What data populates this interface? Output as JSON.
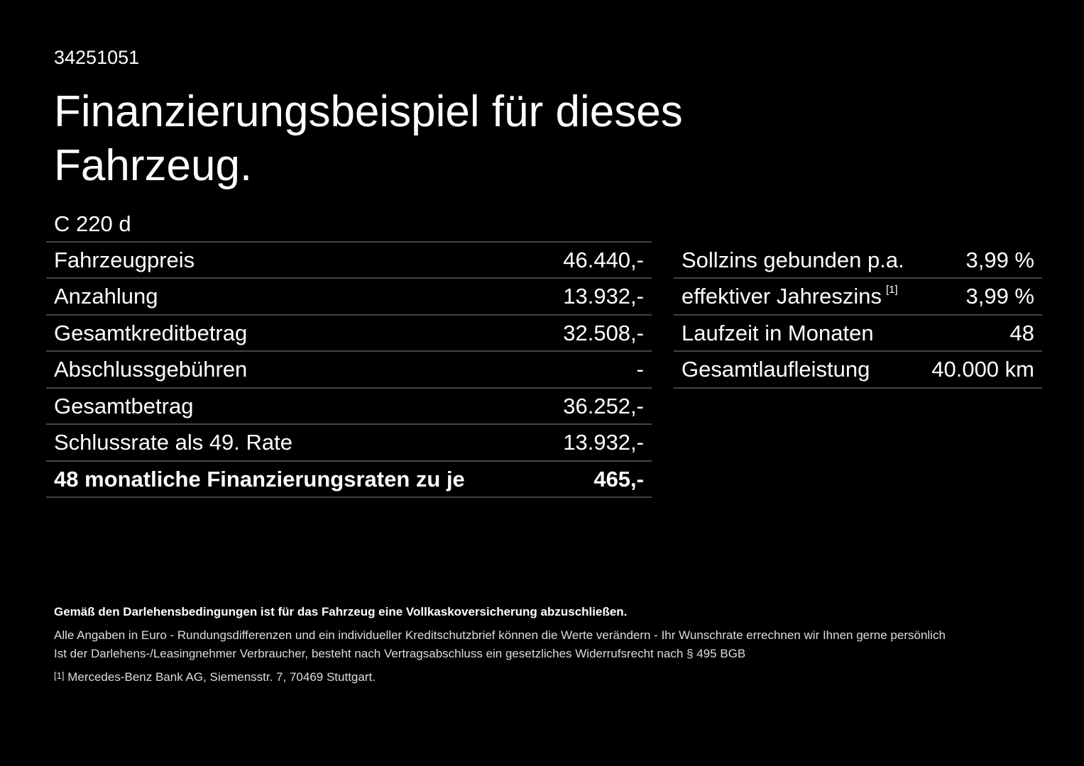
{
  "header": {
    "id": "34251051",
    "title_line1": "Finanzierungsbeispiel für dieses",
    "title_line2": "Fahrzeug.",
    "model": "C 220 d"
  },
  "left_table": {
    "rows": [
      [
        "Fahrzeugpreis",
        "46.440,-"
      ],
      [
        "Anzahlung",
        "13.932,-"
      ],
      [
        "Gesamtkreditbetrag",
        "32.508,-"
      ],
      [
        "Abschlussgebühren",
        "-"
      ],
      [
        "Gesamtbetrag",
        "36.252,-"
      ],
      [
        "Schlussrate als 49. Rate",
        "13.932,-"
      ],
      [
        "48 monatliche Finanzierungsraten zu je",
        "465,-"
      ]
    ]
  },
  "right_table": {
    "rows": [
      [
        "Sollzins gebunden p.a.",
        "3,99 %"
      ],
      [
        "effektiver Jahreszins",
        "3,99 %"
      ],
      [
        "Laufzeit in Monaten",
        "48"
      ],
      [
        "Gesamtlaufleistung",
        "40.000 km"
      ]
    ],
    "footnote_ref": "[1]"
  },
  "footer": {
    "bold": "Gemäß den Darlehensbedingungen ist für das Fahrzeug eine Vollkaskoversicherung abzuschließen.",
    "line1": "Alle Angaben in Euro - Rundungsdifferenzen und ein individueller Kreditschutzbrief können die Werte verändern - Ihr Wunschrate errechnen wir Ihnen gerne persönlich",
    "line2": "Ist der Darlehens-/Leasingnehmer Verbraucher, besteht nach Vertragsabschluss ein gesetzliches Widerrufsrecht nach § 495 BGB",
    "note_marker": "[1]",
    "note": "Mercedes-Benz Bank AG, Siemensstr. 7, 70469 Stuttgart."
  }
}
